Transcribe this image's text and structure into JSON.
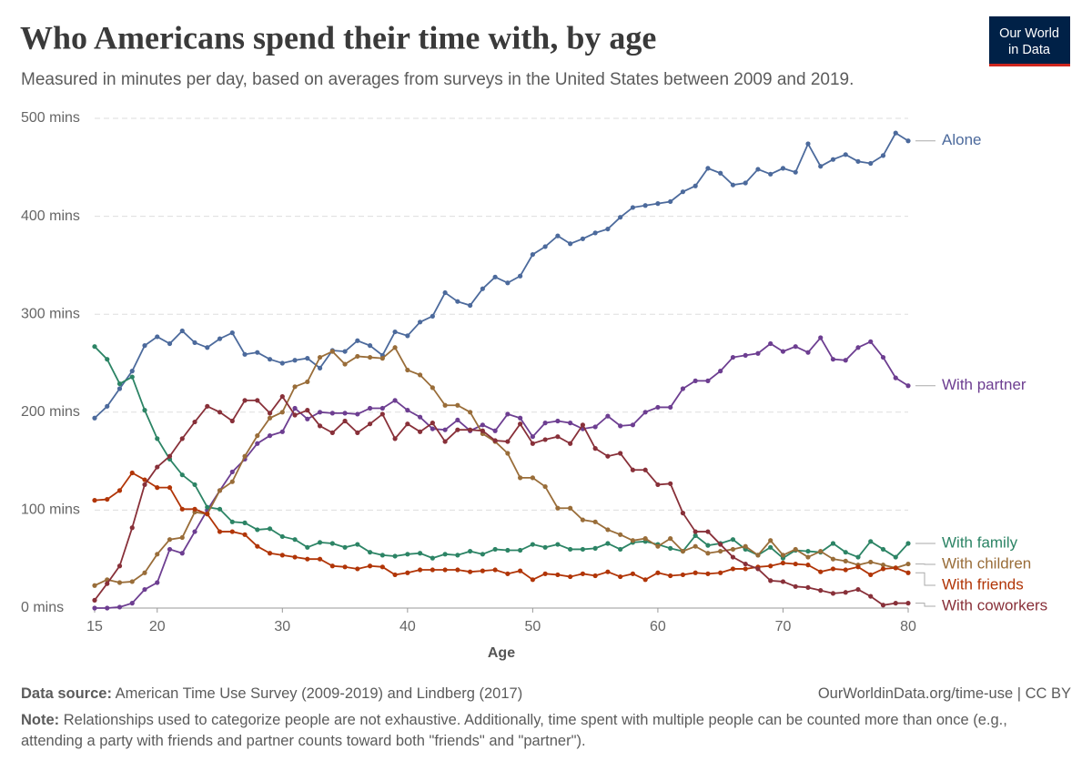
{
  "chart_data": {
    "type": "line",
    "title": "Who Americans spend their time with, by age",
    "subtitle": "Measured in minutes per day, based on averages from surveys in the United States between 2009 and 2019.",
    "logo": [
      "Our World",
      "in Data"
    ],
    "xlabel": "Age",
    "x": [
      15,
      16,
      17,
      18,
      19,
      20,
      21,
      22,
      23,
      24,
      25,
      26,
      27,
      28,
      29,
      30,
      31,
      32,
      33,
      34,
      35,
      36,
      37,
      38,
      39,
      40,
      41,
      42,
      43,
      44,
      45,
      46,
      47,
      48,
      49,
      50,
      51,
      52,
      53,
      54,
      55,
      56,
      57,
      58,
      59,
      60,
      61,
      62,
      63,
      64,
      65,
      66,
      67,
      68,
      69,
      70,
      71,
      72,
      73,
      74,
      75,
      76,
      77,
      78,
      79,
      80
    ],
    "xlim": [
      15,
      80
    ],
    "xticks": [
      15,
      20,
      30,
      40,
      50,
      60,
      70,
      80
    ],
    "ylim": [
      0,
      500
    ],
    "yticks": [
      {
        "value": 0,
        "label": "0 mins"
      },
      {
        "value": 100,
        "label": "100 mins"
      },
      {
        "value": 200,
        "label": "200 mins"
      },
      {
        "value": 300,
        "label": "300 mins"
      },
      {
        "value": 400,
        "label": "400 mins"
      },
      {
        "value": 500,
        "label": "500 mins"
      }
    ],
    "grid": true,
    "series": [
      {
        "name": "Alone",
        "color": "#4c6a9c",
        "values": [
          194,
          206,
          224,
          242,
          268,
          277,
          270,
          283,
          271,
          266,
          275,
          281,
          259,
          261,
          254,
          250,
          253,
          255,
          245,
          263,
          262,
          273,
          268,
          258,
          282,
          278,
          292,
          298,
          322,
          313,
          309,
          326,
          338,
          332,
          339,
          361,
          369,
          380,
          372,
          377,
          383,
          387,
          399,
          409,
          411,
          413,
          415,
          425,
          431,
          449,
          444,
          432,
          434,
          448,
          443,
          449,
          445,
          474,
          451,
          458,
          463,
          456,
          454,
          462,
          485,
          477
        ]
      },
      {
        "name": "With partner",
        "color": "#6d3e91",
        "values": [
          0,
          0,
          1,
          5,
          19,
          26,
          60,
          56,
          78,
          100,
          120,
          139,
          152,
          168,
          176,
          180,
          204,
          193,
          200,
          199,
          199,
          198,
          204,
          204,
          212,
          202,
          195,
          183,
          182,
          192,
          181,
          187,
          181,
          198,
          194,
          175,
          189,
          191,
          189,
          183,
          185,
          196,
          186,
          187,
          200,
          205,
          205,
          224,
          232,
          232,
          242,
          256,
          258,
          260,
          270,
          262,
          267,
          261,
          276,
          254,
          253,
          266,
          272,
          256,
          235,
          227
        ]
      },
      {
        "name": "With family",
        "color": "#2c8465",
        "values": [
          267,
          254,
          229,
          236,
          202,
          173,
          152,
          136,
          126,
          103,
          101,
          88,
          87,
          80,
          81,
          73,
          70,
          62,
          67,
          66,
          62,
          65,
          57,
          54,
          53,
          55,
          56,
          51,
          55,
          54,
          58,
          55,
          60,
          59,
          59,
          65,
          62,
          65,
          60,
          60,
          61,
          66,
          60,
          67,
          68,
          65,
          61,
          58,
          74,
          64,
          66,
          70,
          60,
          54,
          62,
          51,
          59,
          58,
          57,
          66,
          57,
          52,
          68,
          60,
          52,
          66
        ]
      },
      {
        "name": "With children",
        "color": "#996d39",
        "values": [
          23,
          29,
          26,
          27,
          36,
          55,
          70,
          72,
          98,
          96,
          120,
          129,
          155,
          176,
          194,
          200,
          226,
          231,
          256,
          262,
          249,
          257,
          256,
          255,
          266,
          243,
          238,
          225,
          207,
          207,
          200,
          178,
          170,
          158,
          133,
          133,
          124,
          102,
          102,
          90,
          88,
          80,
          75,
          69,
          71,
          63,
          71,
          58,
          63,
          56,
          58,
          60,
          63,
          54,
          69,
          54,
          60,
          52,
          58,
          50,
          48,
          44,
          47,
          44,
          41,
          45
        ]
      },
      {
        "name": "With friends",
        "color": "#b13507",
        "values": [
          110,
          111,
          120,
          138,
          131,
          123,
          123,
          101,
          101,
          96,
          78,
          78,
          75,
          63,
          56,
          54,
          52,
          50,
          50,
          43,
          42,
          40,
          43,
          42,
          34,
          36,
          39,
          39,
          39,
          39,
          37,
          38,
          39,
          35,
          38,
          29,
          35,
          34,
          32,
          35,
          33,
          37,
          32,
          35,
          29,
          36,
          33,
          34,
          36,
          35,
          36,
          40,
          40,
          42,
          43,
          46,
          45,
          44,
          37,
          40,
          39,
          42,
          34,
          40,
          41,
          36
        ]
      },
      {
        "name": "With coworkers",
        "color": "#883039",
        "values": [
          8,
          25,
          43,
          82,
          126,
          144,
          155,
          173,
          190,
          206,
          200,
          191,
          212,
          212,
          199,
          216,
          197,
          202,
          186,
          179,
          191,
          179,
          188,
          198,
          173,
          188,
          180,
          189,
          170,
          182,
          182,
          181,
          171,
          170,
          188,
          168,
          172,
          175,
          168,
          187,
          163,
          155,
          158,
          141,
          141,
          126,
          127,
          97,
          78,
          78,
          65,
          52,
          45,
          40,
          28,
          27,
          22,
          21,
          18,
          15,
          16,
          19,
          12,
          3,
          5,
          5
        ]
      }
    ],
    "source_label": "Data source:",
    "source": "American Time Use Survey (2009-2019) and Lindberg (2017)",
    "url": "OurWorldinData.org/time-use | CC BY",
    "note_label": "Note:",
    "note": "Relationships used to categorize people are not exhaustive. Additionally, time spent with multiple people can be counted more than once (e.g., attending a party with friends and partner counts toward both \"friends\" and \"partner\")."
  }
}
